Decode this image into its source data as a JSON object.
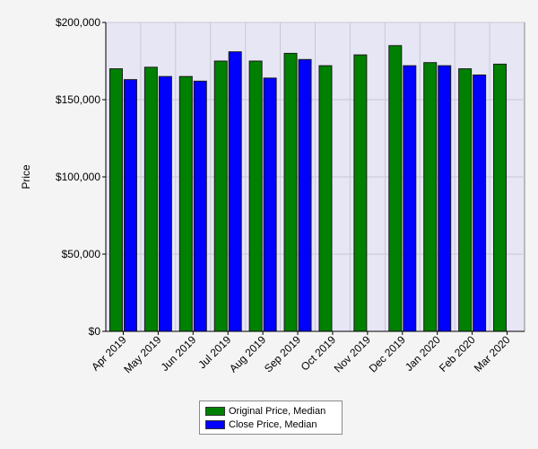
{
  "chart_data": {
    "type": "bar",
    "title": "",
    "xlabel": "",
    "ylabel": "Price",
    "ylim": [
      0,
      200000
    ],
    "yticks": [
      0,
      50000,
      100000,
      150000,
      200000
    ],
    "ytick_labels": [
      "$0",
      "$50,000",
      "$100,000",
      "$150,000",
      "$200,000"
    ],
    "categories": [
      "Apr 2019",
      "May 2019",
      "Jun 2019",
      "Jul 2019",
      "Aug 2019",
      "Sep 2019",
      "Oct 2019",
      "Nov 2019",
      "Dec 2019",
      "Jan 2020",
      "Feb 2020",
      "Mar 2020"
    ],
    "series": [
      {
        "name": "Original Price, Median",
        "color": "#008000",
        "values": [
          170000,
          171000,
          165000,
          175000,
          175000,
          180000,
          172000,
          179000,
          185000,
          174000,
          170000,
          173000
        ]
      },
      {
        "name": "Close Price, Median",
        "color": "#0000ff",
        "values": [
          163000,
          165000,
          162000,
          181000,
          164000,
          176000,
          null,
          null,
          172000,
          172000,
          166000,
          null
        ]
      }
    ],
    "grid": true,
    "legend_position": "bottom-center",
    "plot_background": "#e6e6f5"
  }
}
